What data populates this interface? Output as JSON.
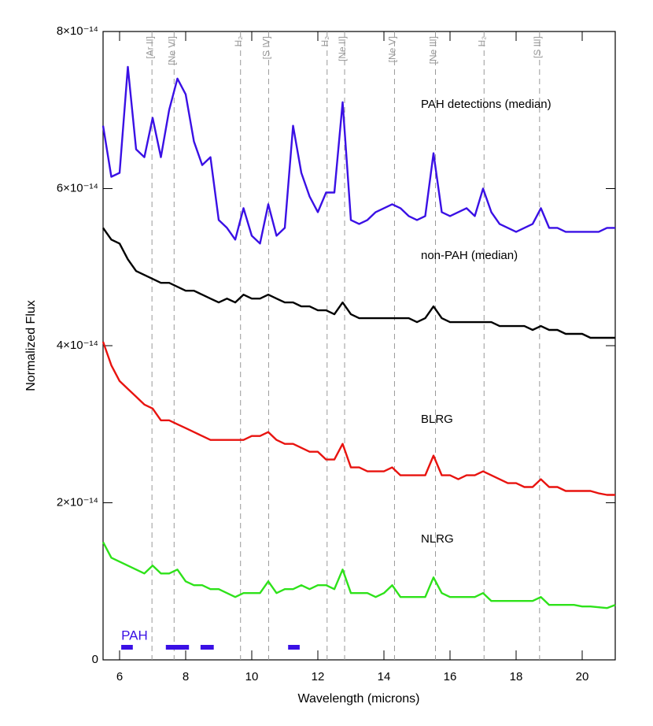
{
  "chart_data": {
    "type": "line",
    "xlabel": "Wavelength (microns)",
    "ylabel": "Normalized Flux",
    "xlim": [
      5.5,
      21
    ],
    "ylim": [
      0,
      8e-14
    ],
    "xticks": [
      6,
      8,
      10,
      12,
      14,
      16,
      18,
      20
    ],
    "yticks": [
      0,
      {
        "value": 2e-14,
        "label": "2×10⁻¹⁴"
      },
      {
        "value": 4e-14,
        "label": "4×10⁻¹⁴"
      },
      {
        "value": 6e-14,
        "label": "6×10⁻¹⁴"
      },
      {
        "value": 8e-14,
        "label": "8×10⁻¹⁴"
      }
    ],
    "x": [
      5.5,
      5.75,
      6,
      6.25,
      6.5,
      6.75,
      7,
      7.25,
      7.5,
      7.75,
      8,
      8.25,
      8.5,
      8.75,
      9,
      9.25,
      9.5,
      9.75,
      10,
      10.25,
      10.5,
      10.75,
      11,
      11.25,
      11.5,
      11.75,
      12,
      12.25,
      12.5,
      12.75,
      13,
      13.25,
      13.5,
      13.75,
      14,
      14.25,
      14.5,
      14.75,
      15,
      15.25,
      15.5,
      15.75,
      16,
      16.25,
      16.5,
      16.75,
      17,
      17.25,
      17.5,
      17.75,
      18,
      18.25,
      18.5,
      18.75,
      19,
      19.25,
      19.5,
      19.75,
      20,
      20.25,
      20.5,
      20.75,
      21
    ],
    "series": [
      {
        "name": "PAH detections (median)",
        "color": "#3a10e5",
        "values": [
          6.8e-14,
          6.15e-14,
          6.2e-14,
          7.55e-14,
          6.5e-14,
          6.4e-14,
          6.9e-14,
          6.4e-14,
          7e-14,
          7.4e-14,
          7.2e-14,
          6.6e-14,
          6.3e-14,
          6.4e-14,
          5.6e-14,
          5.5e-14,
          5.35e-14,
          5.75e-14,
          5.4e-14,
          5.3e-14,
          5.8e-14,
          5.4e-14,
          5.5e-14,
          6.8e-14,
          6.2e-14,
          5.9e-14,
          5.7e-14,
          5.95e-14,
          5.95e-14,
          7.1e-14,
          5.6e-14,
          5.55e-14,
          5.6e-14,
          5.7e-14,
          5.75e-14,
          5.8e-14,
          5.75e-14,
          5.65e-14,
          5.6e-14,
          5.65e-14,
          6.45e-14,
          5.7e-14,
          5.65e-14,
          5.7e-14,
          5.75e-14,
          5.65e-14,
          6e-14,
          5.7e-14,
          5.55e-14,
          5.5e-14,
          5.45e-14,
          5.5e-14,
          5.55e-14,
          5.75e-14,
          5.5e-14,
          5.5e-14,
          5.45e-14,
          5.45e-14,
          5.45e-14,
          5.45e-14,
          5.45e-14,
          5.5e-14,
          5.5e-14
        ]
      },
      {
        "name": "non-PAH (median)",
        "color": "#000000",
        "values": [
          5.5e-14,
          5.35e-14,
          5.3e-14,
          5.1e-14,
          4.95e-14,
          4.9e-14,
          4.85e-14,
          4.8e-14,
          4.8e-14,
          4.75e-14,
          4.7e-14,
          4.7e-14,
          4.65e-14,
          4.6e-14,
          4.55e-14,
          4.6e-14,
          4.55e-14,
          4.65e-14,
          4.6e-14,
          4.6e-14,
          4.65e-14,
          4.6e-14,
          4.55e-14,
          4.55e-14,
          4.5e-14,
          4.5e-14,
          4.45e-14,
          4.45e-14,
          4.4e-14,
          4.55e-14,
          4.4e-14,
          4.35e-14,
          4.35e-14,
          4.35e-14,
          4.35e-14,
          4.35e-14,
          4.35e-14,
          4.35e-14,
          4.3e-14,
          4.35e-14,
          4.5e-14,
          4.35e-14,
          4.3e-14,
          4.3e-14,
          4.3e-14,
          4.3e-14,
          4.3e-14,
          4.3e-14,
          4.25e-14,
          4.25e-14,
          4.25e-14,
          4.25e-14,
          4.2e-14,
          4.25e-14,
          4.2e-14,
          4.2e-14,
          4.15e-14,
          4.15e-14,
          4.15e-14,
          4.1e-14,
          4.1e-14,
          4.1e-14,
          4.1e-14
        ]
      },
      {
        "name": "BLRG",
        "color": "#e8130f",
        "values": [
          4.05e-14,
          3.75e-14,
          3.55e-14,
          3.45e-14,
          3.35e-14,
          3.25e-14,
          3.2e-14,
          3.05e-14,
          3.05e-14,
          3e-14,
          2.95e-14,
          2.9e-14,
          2.85e-14,
          2.8e-14,
          2.8e-14,
          2.8e-14,
          2.8e-14,
          2.8e-14,
          2.85e-14,
          2.85e-14,
          2.9e-14,
          2.8e-14,
          2.75e-14,
          2.75e-14,
          2.7e-14,
          2.65e-14,
          2.65e-14,
          2.55e-14,
          2.55e-14,
          2.75e-14,
          2.45e-14,
          2.45e-14,
          2.4e-14,
          2.4e-14,
          2.4e-14,
          2.45e-14,
          2.35e-14,
          2.35e-14,
          2.35e-14,
          2.35e-14,
          2.6e-14,
          2.35e-14,
          2.35e-14,
          2.3e-14,
          2.35e-14,
          2.35e-14,
          2.4e-14,
          2.35e-14,
          2.3e-14,
          2.25e-14,
          2.25e-14,
          2.2e-14,
          2.2e-14,
          2.3e-14,
          2.2e-14,
          2.2e-14,
          2.15e-14,
          2.15e-14,
          2.15e-14,
          2.15e-14,
          2.12e-14,
          2.1e-14,
          2.1e-14
        ]
      },
      {
        "name": "NLRG",
        "color": "#2ee21a",
        "values": [
          1.5e-14,
          1.3e-14,
          1.25e-14,
          1.2e-14,
          1.15e-14,
          1.1e-14,
          1.2e-14,
          1.1e-14,
          1.1e-14,
          1.15e-14,
          1e-14,
          9.5e-15,
          9.5e-15,
          9e-15,
          9e-15,
          8.5e-15,
          8e-15,
          8.5e-15,
          8.5e-15,
          8.5e-15,
          1e-14,
          8.5e-15,
          9e-15,
          9e-15,
          9.5e-15,
          9e-15,
          9.5e-15,
          9.5e-15,
          9e-15,
          1.15e-14,
          8.5e-15,
          8.5e-15,
          8.5e-15,
          8e-15,
          8.5e-15,
          9.5e-15,
          8e-15,
          8e-15,
          8e-15,
          8e-15,
          1.05e-14,
          8.5e-15,
          8e-15,
          8e-15,
          8e-15,
          8e-15,
          8.5e-15,
          7.5e-15,
          7.5e-15,
          7.5e-15,
          7.5e-15,
          7.5e-15,
          7.5e-15,
          8e-15,
          7e-15,
          7e-15,
          7e-15,
          7e-15,
          6.8e-15,
          6.8e-15,
          6.7e-15,
          6.6e-15,
          7e-15
        ]
      }
    ],
    "lines": [
      {
        "x": 6.98,
        "label": "[Ar II]"
      },
      {
        "x": 7.65,
        "label": "[Ne VI]"
      },
      {
        "x": 9.66,
        "label": "H₂"
      },
      {
        "x": 10.51,
        "label": "[S IV]"
      },
      {
        "x": 12.28,
        "label": "H₂"
      },
      {
        "x": 12.81,
        "label": "[Ne II]"
      },
      {
        "x": 14.32,
        "label": "[Ne V]"
      },
      {
        "x": 15.56,
        "label": "[Ne III]"
      },
      {
        "x": 17.03,
        "label": "H₂"
      },
      {
        "x": 18.71,
        "label": "[S III]"
      }
    ],
    "pah_bands": {
      "label": "PAH",
      "color": "#3a10e5",
      "ranges": [
        [
          6.05,
          6.4
        ],
        [
          7.4,
          8.1
        ],
        [
          8.45,
          8.85
        ],
        [
          11.1,
          11.45
        ]
      ]
    }
  }
}
